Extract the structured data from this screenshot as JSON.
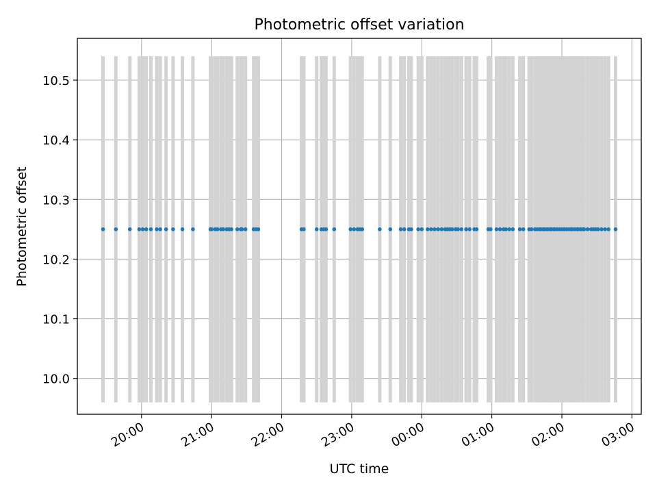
{
  "chart_data": {
    "type": "scatter",
    "title": "Photometric offset variation",
    "xlabel": "UTC time",
    "ylabel": "Photometric offset",
    "x_tick_labels": [
      "20:00",
      "21:00",
      "22:00",
      "23:00",
      "00:00",
      "01:00",
      "02:00",
      "03:00"
    ],
    "y_tick_labels": [
      "10.0",
      "10.1",
      "10.2",
      "10.3",
      "10.4",
      "10.5"
    ],
    "y_ticks": [
      10.0,
      10.1,
      10.2,
      10.3,
      10.4,
      10.5
    ],
    "x_ticks_time": [
      "20:00",
      "21:00",
      "22:00",
      "23:00",
      "24:00",
      "25:00",
      "26:00",
      "27:00"
    ],
    "xlim_time": [
      "19:05",
      "27:08"
    ],
    "ylim": [
      9.94,
      10.57
    ],
    "grid": true,
    "point_color": "#1f77b4",
    "error_bar_color": "#d3d3d3",
    "offset_value": 10.25,
    "error_bar_range": [
      9.96,
      10.54
    ],
    "times": [
      "19:27",
      "19:38",
      "19:50",
      "19:58",
      "20:01",
      "20:04",
      "20:08",
      "20:13",
      "20:16",
      "20:21",
      "20:27",
      "20:35",
      "20:44",
      "20:59",
      "21:00",
      "21:03",
      "21:05",
      "21:08",
      "21:10",
      "21:13",
      "21:15",
      "21:17",
      "21:22",
      "21:25",
      "21:26",
      "21:29",
      "21:36",
      "21:38",
      "21:40",
      "22:17",
      "22:19",
      "22:30",
      "22:34",
      "22:36",
      "22:38",
      "22:45",
      "22:59",
      "23:02",
      "23:05",
      "23:07",
      "23:09",
      "23:24",
      "23:33",
      "23:42",
      "23:45",
      "23:49",
      "23:51",
      "23:57",
      "24:00",
      "24:05",
      "24:08",
      "24:11",
      "24:14",
      "24:17",
      "24:20",
      "24:22",
      "24:24",
      "24:26",
      "24:29",
      "24:31",
      "24:34",
      "24:38",
      "24:41",
      "24:45",
      "24:47",
      "24:57",
      "24:59",
      "25:04",
      "25:07",
      "25:10",
      "25:12",
      "25:15",
      "25:18",
      "25:24",
      "25:27",
      "25:32",
      "25:34",
      "25:37",
      "25:39",
      "25:41",
      "25:42",
      "25:44",
      "25:45",
      "25:47",
      "25:48",
      "25:50",
      "25:51",
      "25:53",
      "25:54",
      "25:56",
      "25:58",
      "26:00",
      "26:02",
      "26:04",
      "26:06",
      "26:08",
      "26:09",
      "26:11",
      "26:13",
      "26:14",
      "26:16",
      "26:18",
      "26:19",
      "26:22",
      "26:25",
      "26:27",
      "26:29",
      "26:31",
      "26:34",
      "26:37",
      "26:40",
      "26:46"
    ]
  }
}
